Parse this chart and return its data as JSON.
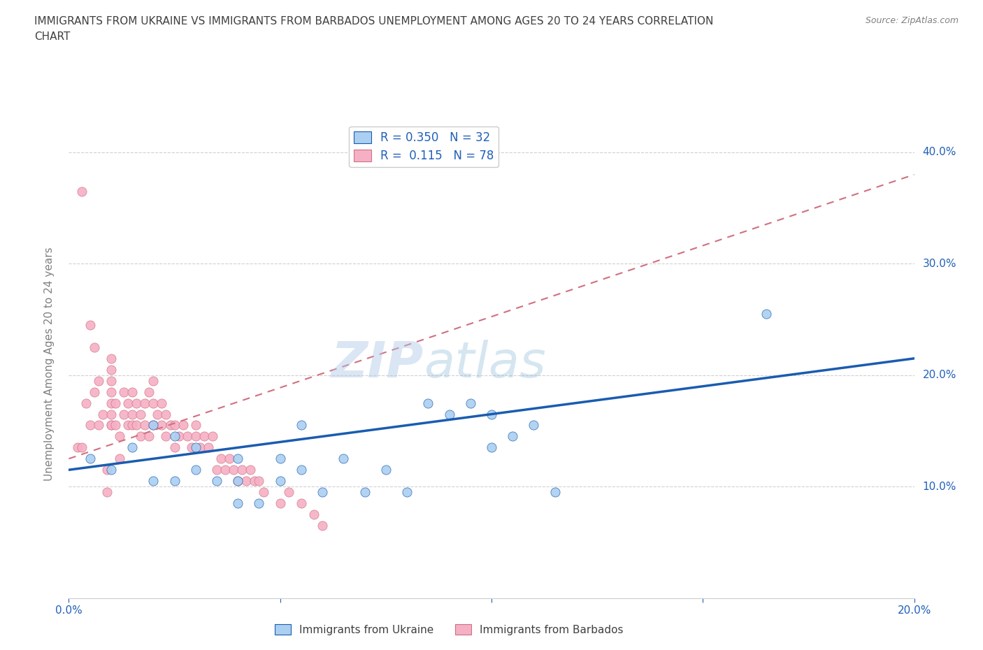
{
  "title_line1": "IMMIGRANTS FROM UKRAINE VS IMMIGRANTS FROM BARBADOS UNEMPLOYMENT AMONG AGES 20 TO 24 YEARS CORRELATION",
  "title_line2": "CHART",
  "source": "Source: ZipAtlas.com",
  "ylabel": "Unemployment Among Ages 20 to 24 years",
  "xlim": [
    0.0,
    0.2
  ],
  "ylim": [
    0.0,
    0.42
  ],
  "yticks": [
    0.1,
    0.2,
    0.3,
    0.4
  ],
  "xticks": [
    0.0,
    0.05,
    0.1,
    0.15,
    0.2
  ],
  "xtick_labels": [
    "0.0%",
    "",
    "",
    "",
    "20.0%"
  ],
  "ytick_labels": [
    "10.0%",
    "20.0%",
    "30.0%",
    "40.0%"
  ],
  "ukraine_color": "#aacff0",
  "barbados_color": "#f5b0c5",
  "ukraine_line_color": "#1a5cb0",
  "barbados_line_color": "#d07080",
  "ukraine_R": 0.35,
  "ukraine_N": 32,
  "barbados_R": 0.115,
  "barbados_N": 78,
  "watermark_zip": "ZIP",
  "watermark_atlas": "atlas",
  "ukraine_x": [
    0.005,
    0.01,
    0.015,
    0.02,
    0.02,
    0.025,
    0.025,
    0.03,
    0.03,
    0.035,
    0.04,
    0.04,
    0.04,
    0.045,
    0.05,
    0.05,
    0.055,
    0.055,
    0.06,
    0.065,
    0.07,
    0.075,
    0.08,
    0.085,
    0.09,
    0.095,
    0.1,
    0.1,
    0.105,
    0.11,
    0.115,
    0.165
  ],
  "ukraine_y": [
    0.125,
    0.115,
    0.135,
    0.105,
    0.155,
    0.105,
    0.145,
    0.115,
    0.135,
    0.105,
    0.085,
    0.105,
    0.125,
    0.085,
    0.105,
    0.125,
    0.115,
    0.155,
    0.095,
    0.125,
    0.095,
    0.115,
    0.095,
    0.175,
    0.165,
    0.175,
    0.135,
    0.165,
    0.145,
    0.155,
    0.095,
    0.255
  ],
  "barbados_x": [
    0.002,
    0.003,
    0.004,
    0.005,
    0.005,
    0.006,
    0.006,
    0.007,
    0.007,
    0.008,
    0.009,
    0.009,
    0.01,
    0.01,
    0.01,
    0.01,
    0.01,
    0.01,
    0.01,
    0.01,
    0.011,
    0.011,
    0.012,
    0.012,
    0.013,
    0.013,
    0.014,
    0.014,
    0.015,
    0.015,
    0.015,
    0.016,
    0.016,
    0.017,
    0.017,
    0.018,
    0.018,
    0.019,
    0.019,
    0.02,
    0.02,
    0.02,
    0.021,
    0.022,
    0.022,
    0.023,
    0.023,
    0.024,
    0.025,
    0.025,
    0.026,
    0.027,
    0.028,
    0.029,
    0.03,
    0.03,
    0.031,
    0.032,
    0.033,
    0.034,
    0.035,
    0.036,
    0.037,
    0.038,
    0.039,
    0.04,
    0.041,
    0.042,
    0.043,
    0.044,
    0.045,
    0.046,
    0.05,
    0.052,
    0.055,
    0.058,
    0.06,
    0.003
  ],
  "barbados_y": [
    0.135,
    0.135,
    0.175,
    0.155,
    0.245,
    0.225,
    0.185,
    0.155,
    0.195,
    0.165,
    0.095,
    0.115,
    0.155,
    0.155,
    0.165,
    0.175,
    0.185,
    0.195,
    0.205,
    0.215,
    0.155,
    0.175,
    0.125,
    0.145,
    0.185,
    0.165,
    0.175,
    0.155,
    0.165,
    0.185,
    0.155,
    0.175,
    0.155,
    0.145,
    0.165,
    0.175,
    0.155,
    0.185,
    0.145,
    0.175,
    0.195,
    0.155,
    0.165,
    0.175,
    0.155,
    0.145,
    0.165,
    0.155,
    0.135,
    0.155,
    0.145,
    0.155,
    0.145,
    0.135,
    0.145,
    0.155,
    0.135,
    0.145,
    0.135,
    0.145,
    0.115,
    0.125,
    0.115,
    0.125,
    0.115,
    0.105,
    0.115,
    0.105,
    0.115,
    0.105,
    0.105,
    0.095,
    0.085,
    0.095,
    0.085,
    0.075,
    0.065,
    0.365
  ],
  "ukraine_trendline_x": [
    0.0,
    0.2
  ],
  "ukraine_trendline_y": [
    0.115,
    0.215
  ],
  "barbados_trendline_x": [
    0.0,
    0.2
  ],
  "barbados_trendline_y": [
    0.125,
    0.38
  ]
}
